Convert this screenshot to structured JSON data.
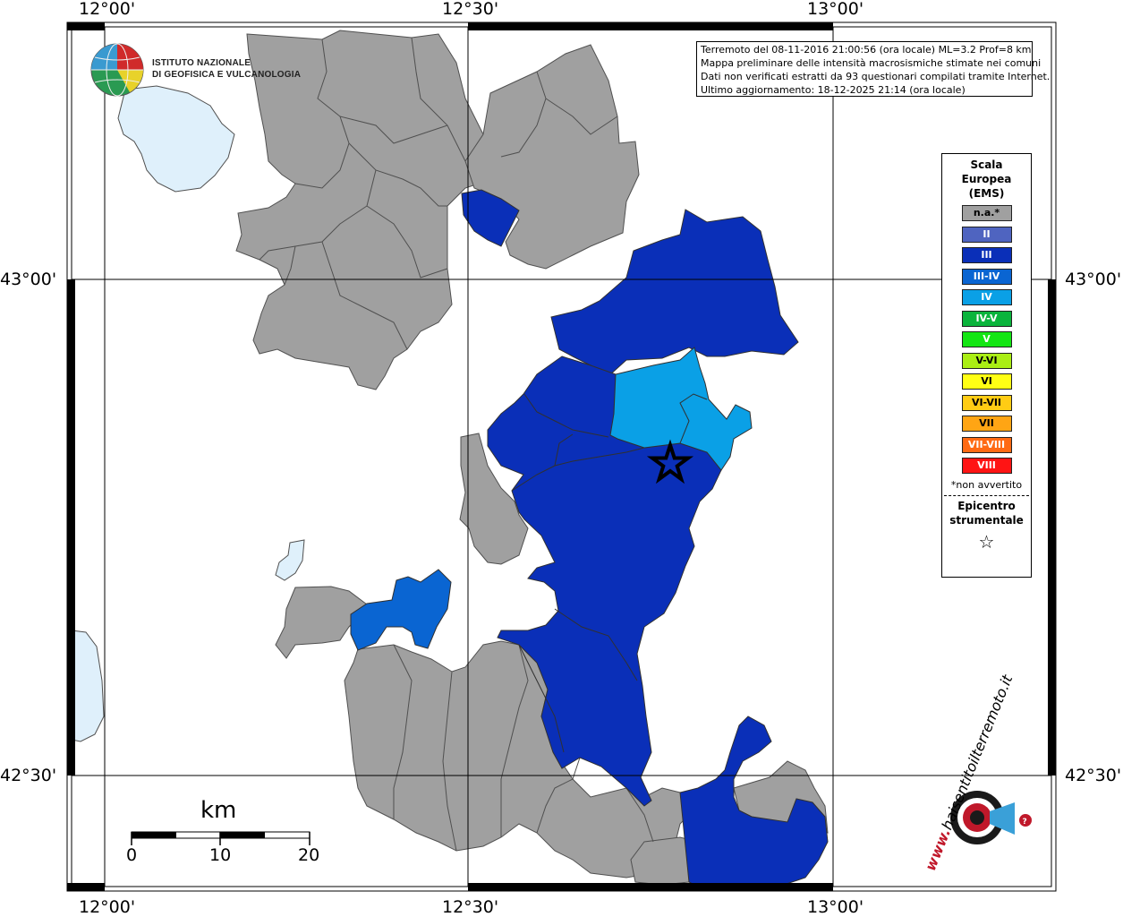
{
  "info_box": {
    "lines": [
      "Terremoto del 08-11-2016 21:00:56 (ora locale) ML=3.2 Prof=8 km",
      "Mappa preliminare delle intensità macrosismiche stimate nei comuni",
      "Dati non verificati estratti da 93 questionari compilati tramite Internet.",
      "Ultimo aggiornamento: 18-12-2025 21:14 (ora locale)"
    ]
  },
  "institute": {
    "line1": "ISTITUTO NAZIONALE",
    "line2": "DI GEOFISICA E VULCANOLOGIA"
  },
  "legend": {
    "title_lines": [
      "Scala",
      "Europea",
      "(EMS)"
    ],
    "items": [
      {
        "label": "n.a.*",
        "color": "#a0a0a0"
      },
      {
        "label": "II",
        "color": "#4f64c0"
      },
      {
        "label": "III",
        "color": "#0a2fb8"
      },
      {
        "label": "III-IV",
        "color": "#0a65d2"
      },
      {
        "label": "IV",
        "color": "#0aa0e6"
      },
      {
        "label": "IV-V",
        "color": "#0ab43c"
      },
      {
        "label": "V",
        "color": "#14e614"
      },
      {
        "label": "V-VI",
        "color": "#aaee14"
      },
      {
        "label": "VI",
        "color": "#ffff14"
      },
      {
        "label": "VI-VII",
        "color": "#ffcc14"
      },
      {
        "label": "VII",
        "color": "#ffa514"
      },
      {
        "label": "VII-VIII",
        "color": "#ff6a14"
      },
      {
        "label": "VIII",
        "color": "#ff1414"
      }
    ],
    "note": "*non avvertito",
    "epicenter_lines": [
      "Epicentro",
      "strumentale"
    ],
    "star_glyph": "☆"
  },
  "coordinates": {
    "lon_labels": [
      "12°00'",
      "12°30'",
      "13°00'"
    ],
    "lat_labels": [
      "43°00'",
      "42°30'"
    ]
  },
  "scale_bar": {
    "unit": "km",
    "ticks": [
      "0",
      "10",
      "20"
    ]
  },
  "watermark": {
    "text": "haisentitoilterremoto.it",
    "url_text": "www."
  },
  "colors": {
    "na": "#a0a0a0",
    "iii": "#0a2fb8",
    "iii_iv": "#0a65d2",
    "iv": "#0aa0e6",
    "lake": "#dff0fb",
    "border": "#505050"
  }
}
